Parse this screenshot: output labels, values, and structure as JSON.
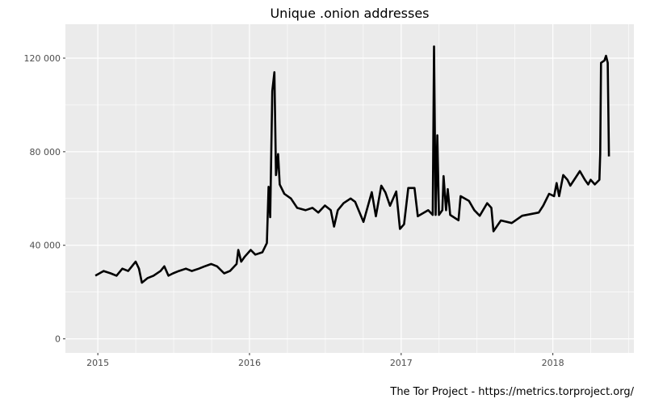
{
  "chart_data": {
    "type": "line",
    "title": "Unique .onion addresses",
    "xlabel": "",
    "ylabel": "",
    "caption": "The Tor Project - https://metrics.torproject.org/",
    "x_ticks": [
      "2015",
      "2016",
      "2017",
      "2018"
    ],
    "y_ticks": [
      {
        "value": 0,
        "label": "0"
      },
      {
        "value": 40000,
        "label": "40 000"
      },
      {
        "value": 80000,
        "label": "80 000"
      },
      {
        "value": 120000,
        "label": "120 000"
      }
    ],
    "xlim": [
      "2014-10-15",
      "2018-07-15"
    ],
    "ylim": [
      -6000,
      134500
    ],
    "grid": true,
    "panel_background": "#ebebeb",
    "line_color": "#000000",
    "series": [
      {
        "points": [
          [
            "2014-12-26",
            27000
          ],
          [
            "2015-01-15",
            29000
          ],
          [
            "2015-02-01",
            28000
          ],
          [
            "2015-02-15",
            27000
          ],
          [
            "2015-03-01",
            30000
          ],
          [
            "2015-03-15",
            29000
          ],
          [
            "2015-04-02",
            33000
          ],
          [
            "2015-04-10",
            30000
          ],
          [
            "2015-04-17",
            24000
          ],
          [
            "2015-05-01",
            26000
          ],
          [
            "2015-05-15",
            27000
          ],
          [
            "2015-06-01",
            29000
          ],
          [
            "2015-06-10",
            31000
          ],
          [
            "2015-06-20",
            27000
          ],
          [
            "2015-07-01",
            28000
          ],
          [
            "2015-07-15",
            29000
          ],
          [
            "2015-08-01",
            30000
          ],
          [
            "2015-08-15",
            29000
          ],
          [
            "2015-09-01",
            30000
          ],
          [
            "2015-09-15",
            31000
          ],
          [
            "2015-10-01",
            32000
          ],
          [
            "2015-10-15",
            31000
          ],
          [
            "2015-11-01",
            28000
          ],
          [
            "2015-11-15",
            29000
          ],
          [
            "2015-12-01",
            32000
          ],
          [
            "2015-12-05",
            38000
          ],
          [
            "2015-12-12",
            33000
          ],
          [
            "2015-12-20",
            35000
          ],
          [
            "2016-01-04",
            38000
          ],
          [
            "2016-01-15",
            36000
          ],
          [
            "2016-02-01",
            37000
          ],
          [
            "2016-02-12",
            41000
          ],
          [
            "2016-02-16",
            65000
          ],
          [
            "2016-02-20",
            52000
          ],
          [
            "2016-02-25",
            106000
          ],
          [
            "2016-03-01",
            114000
          ],
          [
            "2016-03-05",
            70000
          ],
          [
            "2016-03-10",
            79000
          ],
          [
            "2016-03-14",
            66000
          ],
          [
            "2016-03-25",
            62000
          ],
          [
            "2016-04-10",
            60000
          ],
          [
            "2016-04-25",
            56000
          ],
          [
            "2016-05-15",
            55000
          ],
          [
            "2016-06-01",
            56000
          ],
          [
            "2016-06-15",
            54000
          ],
          [
            "2016-07-01",
            57000
          ],
          [
            "2016-07-15",
            55000
          ],
          [
            "2016-07-23",
            48000
          ],
          [
            "2016-08-01",
            55000
          ],
          [
            "2016-08-15",
            58000
          ],
          [
            "2016-09-01",
            60000
          ],
          [
            "2016-09-12",
            58600
          ],
          [
            "2016-10-02",
            50000
          ],
          [
            "2016-10-22",
            62700
          ],
          [
            "2016-11-01",
            52400
          ],
          [
            "2016-11-14",
            65500
          ],
          [
            "2016-11-24",
            62600
          ],
          [
            "2016-12-05",
            56900
          ],
          [
            "2016-12-20",
            63000
          ],
          [
            "2016-12-29",
            47000
          ],
          [
            "2017-01-08",
            49000
          ],
          [
            "2017-01-18",
            64500
          ],
          [
            "2017-02-02",
            64500
          ],
          [
            "2017-02-10",
            52400
          ],
          [
            "2017-03-07",
            55000
          ],
          [
            "2017-03-18",
            53000
          ],
          [
            "2017-03-21",
            125000
          ],
          [
            "2017-03-25",
            53000
          ],
          [
            "2017-03-29",
            87000
          ],
          [
            "2017-04-02",
            53000
          ],
          [
            "2017-04-10",
            55000
          ],
          [
            "2017-04-13",
            69600
          ],
          [
            "2017-04-19",
            55000
          ],
          [
            "2017-04-23",
            64000
          ],
          [
            "2017-04-29",
            53000
          ],
          [
            "2017-05-19",
            50700
          ],
          [
            "2017-05-24",
            61000
          ],
          [
            "2017-06-13",
            59000
          ],
          [
            "2017-06-26",
            55000
          ],
          [
            "2017-07-09",
            52600
          ],
          [
            "2017-07-27",
            58000
          ],
          [
            "2017-08-06",
            56000
          ],
          [
            "2017-08-11",
            46000
          ],
          [
            "2017-08-29",
            50600
          ],
          [
            "2017-09-24",
            49500
          ],
          [
            "2017-10-19",
            52600
          ],
          [
            "2017-11-28",
            54000
          ],
          [
            "2017-12-09",
            57000
          ],
          [
            "2017-12-23",
            62000
          ],
          [
            "2018-01-04",
            61000
          ],
          [
            "2018-01-10",
            66600
          ],
          [
            "2018-01-16",
            61000
          ],
          [
            "2018-01-26",
            70000
          ],
          [
            "2018-02-05",
            68000
          ],
          [
            "2018-02-12",
            65500
          ],
          [
            "2018-03-07",
            71700
          ],
          [
            "2018-03-19",
            68000
          ],
          [
            "2018-03-27",
            66000
          ],
          [
            "2018-04-02",
            68000
          ],
          [
            "2018-04-12",
            66000
          ],
          [
            "2018-04-23",
            68000
          ],
          [
            "2018-04-25",
            79000
          ],
          [
            "2018-04-27",
            118000
          ],
          [
            "2018-05-05",
            119000
          ],
          [
            "2018-05-09",
            121000
          ],
          [
            "2018-05-13",
            118000
          ],
          [
            "2018-05-16",
            78000
          ]
        ]
      }
    ]
  }
}
